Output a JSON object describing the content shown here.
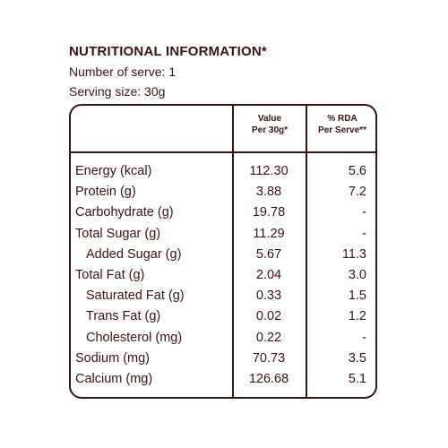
{
  "header": {
    "title": "NUTRITIONAL INFORMATION*",
    "serves": "Number of serve: 1",
    "serving_size": "Serving size: 30g"
  },
  "table": {
    "columns": {
      "value_line1": "Value",
      "value_line2": "Per 30g*",
      "rda_line1": "% RDA",
      "rda_line2": "Per Serve**"
    },
    "rows": [
      {
        "name": "Energy (kcal)",
        "value": "112.30",
        "rda": "5.6",
        "indent": false
      },
      {
        "name": "Protein (g)",
        "value": "3.88",
        "rda": "7.2",
        "indent": false
      },
      {
        "name": "Carbohydrate (g)",
        "value": "19.78",
        "rda": "-",
        "indent": false
      },
      {
        "name": "Total Sugar (g)",
        "value": "11.29",
        "rda": "-",
        "indent": false
      },
      {
        "name": "Added Sugar (g)",
        "value": "5.67",
        "rda": "11.3",
        "indent": true
      },
      {
        "name": "Total Fat (g)",
        "value": "2.04",
        "rda": "3.0",
        "indent": false
      },
      {
        "name": "Saturated Fat (g)",
        "value": "0.33",
        "rda": "1.5",
        "indent": true
      },
      {
        "name": "Trans Fat (g)",
        "value": "0.02",
        "rda": "1.2",
        "indent": true
      },
      {
        "name": "Cholesterol (mg)",
        "value": "0.22",
        "rda": "-",
        "indent": true
      },
      {
        "name": "Sodium (mg)",
        "value": "70.73",
        "rda": "3.5",
        "indent": false
      },
      {
        "name": "Calcium (mg)",
        "value": "126.68",
        "rda": "5.1",
        "indent": false
      }
    ]
  }
}
